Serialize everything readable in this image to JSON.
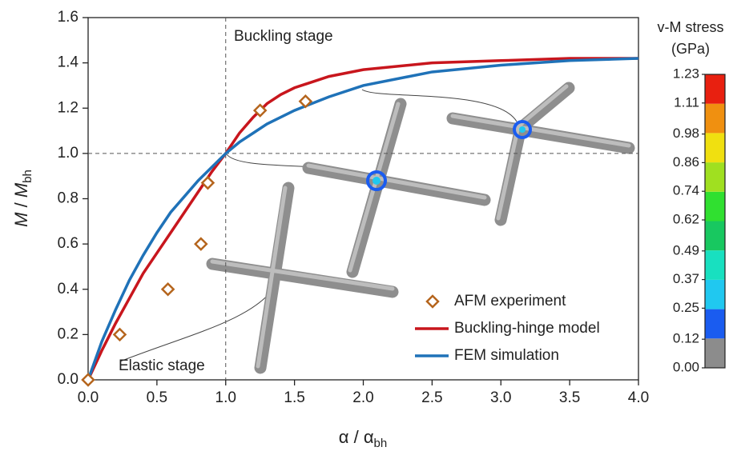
{
  "chart_data": {
    "type": "line",
    "xlabel": [
      "α / α",
      "bh"
    ],
    "ylabel": [
      "M",
      " / ",
      "M",
      "bh"
    ],
    "xlim": [
      0,
      4
    ],
    "ylim": [
      0,
      1.6
    ],
    "xticks": [
      {
        "value": 0,
        "label": "0.0"
      },
      0.5,
      {
        "value": 1,
        "label": "1.0"
      },
      1.5,
      {
        "value": 2,
        "label": "2.0"
      },
      2.5,
      {
        "value": 3,
        "label": "3.0"
      },
      3.5,
      {
        "value": 4,
        "label": "4.0"
      }
    ],
    "yticks": [
      {
        "value": 0,
        "label": "0.0"
      },
      0.2,
      0.4,
      0.6,
      0.8,
      {
        "value": 1,
        "label": "1.0"
      },
      1.2,
      1.4,
      1.6
    ],
    "vline": 1,
    "hline": 1,
    "annotations": [
      "Buckling stage",
      "Elastic stage"
    ],
    "series": [
      {
        "name": "AFM experiment",
        "type": "scatter",
        "color": "#b5651d",
        "x": [
          0,
          0.23,
          0.58,
          0.82,
          0.87,
          1.25,
          1.58
        ],
        "values": [
          0,
          0.2,
          0.4,
          0.6,
          0.87,
          1.19,
          1.23
        ]
      },
      {
        "name": "Buckling-hinge model",
        "type": "line",
        "color": "#c8161d",
        "x": [
          0,
          0.1,
          0.2,
          0.3,
          0.4,
          0.5,
          0.6,
          0.7,
          0.8,
          0.9,
          1,
          1.1,
          1.2,
          1.3,
          1.4,
          1.5,
          1.75,
          2,
          2.5,
          3,
          3.5,
          4
        ],
        "values": [
          0,
          0.13,
          0.25,
          0.36,
          0.47,
          0.56,
          0.65,
          0.74,
          0.83,
          0.92,
          1.0,
          1.09,
          1.16,
          1.22,
          1.26,
          1.29,
          1.34,
          1.37,
          1.4,
          1.41,
          1.42,
          1.42
        ]
      },
      {
        "name": "FEM simulation",
        "type": "line",
        "color": "#1f72b8",
        "x": [
          0,
          0.1,
          0.2,
          0.3,
          0.4,
          0.5,
          0.6,
          0.7,
          0.8,
          0.9,
          1,
          1.1,
          1.2,
          1.3,
          1.4,
          1.5,
          1.75,
          2,
          2.5,
          3,
          3.5,
          4
        ],
        "values": [
          0,
          0.17,
          0.31,
          0.44,
          0.55,
          0.65,
          0.74,
          0.81,
          0.88,
          0.94,
          1.0,
          1.05,
          1.09,
          1.13,
          1.16,
          1.19,
          1.25,
          1.3,
          1.36,
          1.39,
          1.41,
          1.42
        ]
      }
    ],
    "colorbar": {
      "title": [
        "v-M stress",
        "(GPa)"
      ],
      "clim": [
        0,
        1.23
      ],
      "ticks": [
        {
          "value": 0,
          "label": "0.00"
        },
        0.12,
        0.25,
        0.37,
        0.49,
        0.62,
        0.74,
        0.86,
        0.98,
        1.11,
        1.23
      ],
      "colors": [
        "#8c8c8c",
        "#1a5cf0",
        "#20c8f0",
        "#18e0c0",
        "#18c860",
        "#30e030",
        "#a0e020",
        "#f0e010",
        "#f09010",
        "#e82010"
      ]
    }
  }
}
